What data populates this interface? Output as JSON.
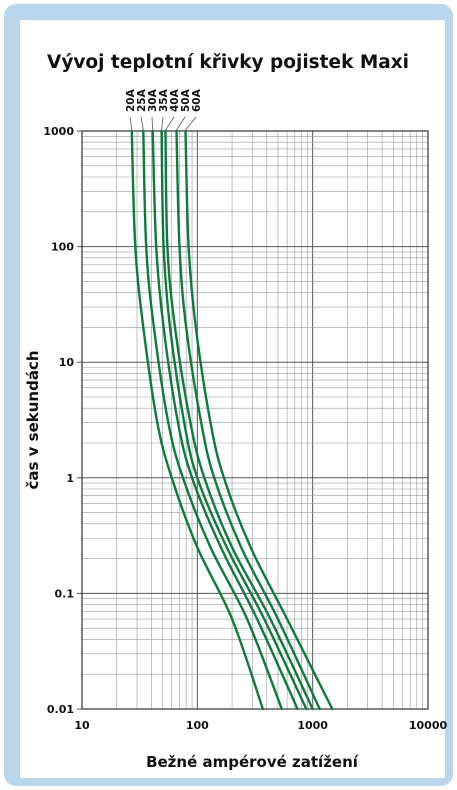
{
  "chart_data": {
    "type": "line",
    "title": "Vývoj teplotní křivky pojistek Maxi",
    "xlabel": "Bežné ampérové zatížení",
    "ylabel": "čas v sekundách",
    "x_scale": "log",
    "y_scale": "log",
    "xlim": [
      10,
      10000
    ],
    "ylim": [
      0.01,
      1000
    ],
    "x_ticks": [
      "10",
      "100",
      "1000",
      "10000"
    ],
    "y_ticks": [
      "0.01",
      "0.1",
      "1",
      "10",
      "100",
      "1000"
    ],
    "grid": true,
    "line_color": "#0e7a3c",
    "series": [
      {
        "name": "20A",
        "points": [
          [
            27,
            1000
          ],
          [
            29,
            100
          ],
          [
            34,
            20
          ],
          [
            45,
            3
          ],
          [
            60,
            1
          ],
          [
            100,
            0.25
          ],
          [
            200,
            0.06
          ],
          [
            370,
            0.01
          ]
        ]
      },
      {
        "name": "25A",
        "points": [
          [
            34,
            1000
          ],
          [
            36,
            100
          ],
          [
            42,
            20
          ],
          [
            56,
            3
          ],
          [
            75,
            1
          ],
          [
            130,
            0.25
          ],
          [
            270,
            0.06
          ],
          [
            540,
            0.01
          ]
        ]
      },
      {
        "name": "30A",
        "points": [
          [
            41,
            1000
          ],
          [
            44,
            100
          ],
          [
            51,
            20
          ],
          [
            68,
            3
          ],
          [
            90,
            1
          ],
          [
            160,
            0.25
          ],
          [
            330,
            0.06
          ],
          [
            740,
            0.01
          ]
        ]
      },
      {
        "name": "35A",
        "points": [
          [
            49,
            1000
          ],
          [
            51,
            100
          ],
          [
            58,
            20
          ],
          [
            77,
            3
          ],
          [
            100,
            1
          ],
          [
            180,
            0.25
          ],
          [
            380,
            0.06
          ],
          [
            880,
            0.01
          ]
        ]
      },
      {
        "name": "40A",
        "points": [
          [
            53,
            1000
          ],
          [
            55,
            100
          ],
          [
            64,
            20
          ],
          [
            87,
            3
          ],
          [
            115,
            1
          ],
          [
            200,
            0.25
          ],
          [
            430,
            0.06
          ],
          [
            1000,
            0.01
          ]
        ]
      },
      {
        "name": "50A",
        "points": [
          [
            66,
            1000
          ],
          [
            70,
            100
          ],
          [
            80,
            20
          ],
          [
            108,
            3
          ],
          [
            140,
            1
          ],
          [
            240,
            0.25
          ],
          [
            500,
            0.06
          ],
          [
            1150,
            0.01
          ]
        ]
      },
      {
        "name": "60A",
        "points": [
          [
            79,
            1000
          ],
          [
            84,
            100
          ],
          [
            97,
            20
          ],
          [
            130,
            3
          ],
          [
            170,
            1
          ],
          [
            290,
            0.25
          ],
          [
            600,
            0.06
          ],
          [
            1480,
            0.01
          ]
        ]
      }
    ]
  }
}
